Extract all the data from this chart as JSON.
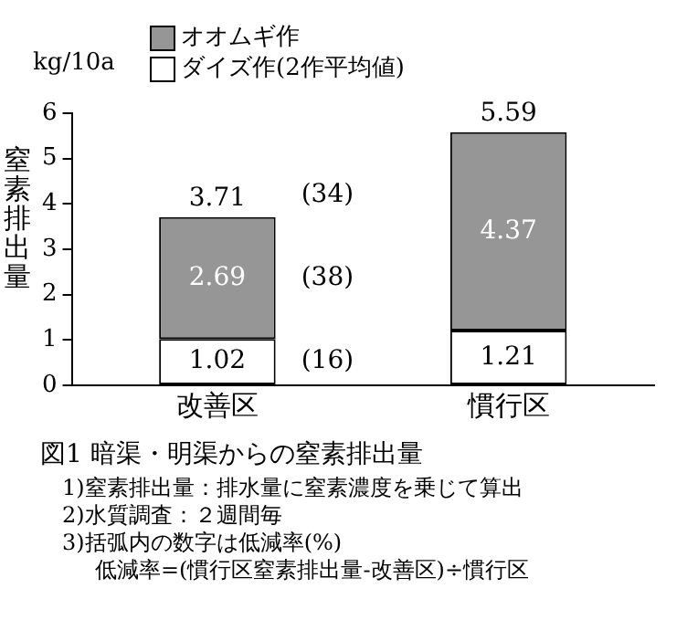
{
  "chart_data": {
    "type": "bar",
    "stacked": true,
    "title": "図1 暗渠・明渠からの窒素排出量",
    "ylabel": "窒素排出量",
    "categories": [
      "改善区",
      "慣行区"
    ],
    "series": [
      {
        "name": "ダイズ作(2作平均値)",
        "color": "#ffffff",
        "values": [
          1.02,
          1.21
        ]
      },
      {
        "name": "オオムギ作",
        "color": "#969696",
        "values": [
          2.69,
          4.37
        ]
      }
    ],
    "ylim": [
      0,
      6
    ],
    "yticks": [
      0,
      1,
      2,
      3,
      4,
      5,
      6
    ],
    "grid": false,
    "legend": "top left",
    "data_labels": true,
    "totals": [
      "3.71",
      "5.59"
    ],
    "annotations": [
      "kg/10a",
      "(34)",
      "(38)",
      "(16)",
      "1)窒素排出量：排水量に窒素濃度を乗じて算出",
      "2)水質調査：２週間毎",
      "3)括弧内の数字は低減率(%)",
      "低減率=(慣行区窒素排出量-改善区)÷慣行区"
    ]
  }
}
